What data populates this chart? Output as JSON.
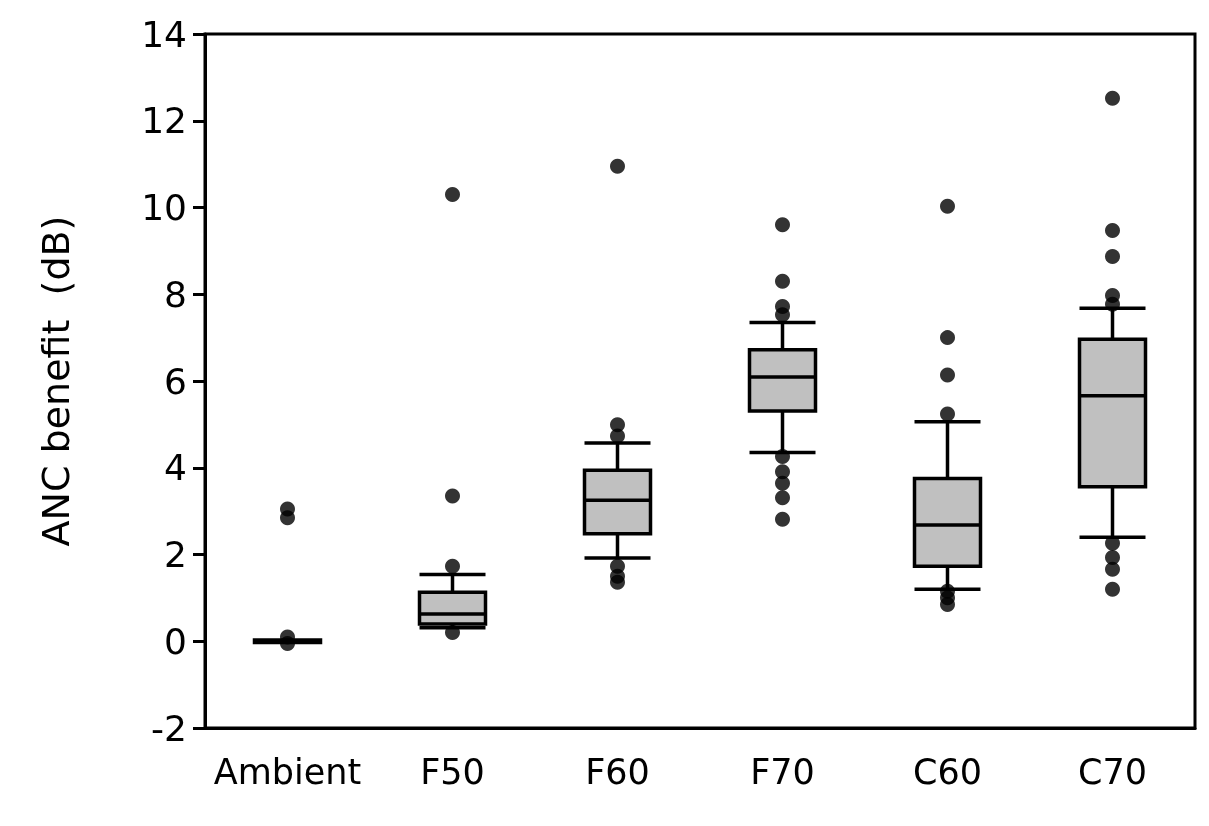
{
  "chart_data": {
    "type": "box",
    "ylabel": "ANC benefit  (dB)",
    "categories": [
      "Ambient",
      "F50",
      "F60",
      "F70",
      "C60",
      "C70"
    ],
    "color": "#c0c0c0",
    "boxes": [
      {
        "low": 0,
        "q1": -0.03,
        "median": 0,
        "q3": 0.03,
        "high": 0,
        "outliers": [
          0.1,
          -0.05,
          2.85,
          3.05
        ]
      },
      {
        "low": 0.31,
        "q1": 0.4,
        "median": 0.63,
        "q3": 1.13,
        "high": 1.54,
        "outliers": [
          0.2,
          1.73,
          3.35,
          10.3
        ]
      },
      {
        "low": 1.92,
        "q1": 2.48,
        "median": 3.25,
        "q3": 3.94,
        "high": 4.57,
        "outliers": [
          1.36,
          1.5,
          1.73,
          4.73,
          4.99,
          10.95
        ]
      },
      {
        "low": 4.35,
        "q1": 5.31,
        "median": 6.09,
        "q3": 6.72,
        "high": 7.35,
        "outliers": [
          2.81,
          3.31,
          3.64,
          3.91,
          4.26,
          7.53,
          7.72,
          8.3,
          9.6
        ]
      },
      {
        "low": 1.2,
        "q1": 1.73,
        "median": 2.68,
        "q3": 3.75,
        "high": 5.06,
        "outliers": [
          0.85,
          1.0,
          1.15,
          5.24,
          6.14,
          7.0,
          10.03
        ]
      },
      {
        "low": 2.4,
        "q1": 3.56,
        "median": 5.66,
        "q3": 6.96,
        "high": 7.68,
        "outliers": [
          1.2,
          1.66,
          1.93,
          2.26,
          7.77,
          7.97,
          8.87,
          9.47,
          12.52
        ]
      }
    ],
    "ylim": [
      -2,
      14
    ],
    "yticks": [
      -2,
      0,
      2,
      4,
      6,
      8,
      10,
      12,
      14
    ],
    "grid": false
  }
}
